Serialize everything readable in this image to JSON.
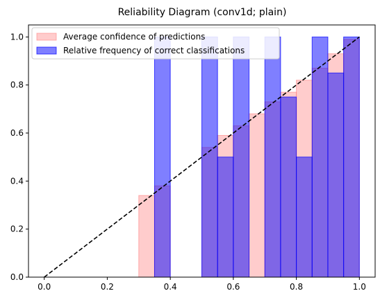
{
  "chart_data": {
    "type": "bar",
    "title": "Reliability Diagram (conv1d; plain)",
    "xlabel": "",
    "ylabel": "",
    "xlim": [
      -0.05,
      1.05
    ],
    "ylim": [
      0,
      1.05
    ],
    "x_ticks": [
      "0.0",
      "0.2",
      "0.4",
      "0.6",
      "0.8",
      "1.0"
    ],
    "y_ticks": [
      "0.0",
      "0.2",
      "0.4",
      "0.6",
      "0.8",
      "1.0"
    ],
    "bin_width": 0.05,
    "legend_position": "upper-left",
    "grid": false,
    "series": [
      {
        "name": "Average confidence of predictions",
        "color": "#ff8080",
        "alpha": 0.4,
        "bins": [
          {
            "x": 0.3,
            "value": 0.34
          },
          {
            "x": 0.35,
            "value": 0.38
          },
          {
            "x": 0.5,
            "value": 0.54
          },
          {
            "x": 0.55,
            "value": 0.59
          },
          {
            "x": 0.6,
            "value": 0.63
          },
          {
            "x": 0.65,
            "value": 0.68
          },
          {
            "x": 0.7,
            "value": 0.73
          },
          {
            "x": 0.75,
            "value": 0.77
          },
          {
            "x": 0.8,
            "value": 0.82
          },
          {
            "x": 0.85,
            "value": 0.87
          },
          {
            "x": 0.9,
            "value": 0.93
          },
          {
            "x": 0.95,
            "value": 0.99
          }
        ]
      },
      {
        "name": "Relative frequency of correct classifications",
        "color": "#0000ff",
        "alpha": 0.5,
        "bins": [
          {
            "x": 0.35,
            "value": 1.0
          },
          {
            "x": 0.5,
            "value": 1.0
          },
          {
            "x": 0.55,
            "value": 0.5
          },
          {
            "x": 0.6,
            "value": 1.0
          },
          {
            "x": 0.7,
            "value": 1.0
          },
          {
            "x": 0.75,
            "value": 0.75
          },
          {
            "x": 0.8,
            "value": 0.5
          },
          {
            "x": 0.85,
            "value": 1.0
          },
          {
            "x": 0.9,
            "value": 0.85
          },
          {
            "x": 0.95,
            "value": 1.0
          }
        ]
      }
    ],
    "reference_line": {
      "from": [
        0,
        0
      ],
      "to": [
        1,
        1
      ],
      "style": "dashed",
      "color": "#000000"
    }
  }
}
